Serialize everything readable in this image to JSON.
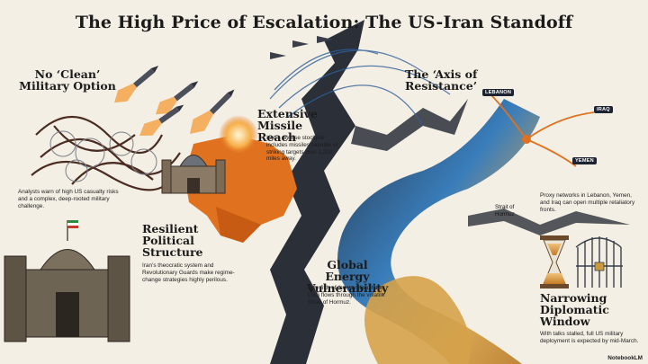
{
  "title": "The High Price of Escalation: The US-Iran Standoff",
  "sections": {
    "military": {
      "heading": "No ‘Clean’ Military Option",
      "body": "Analysts warn of high US casualty risks and a complex, deep-rooted military challenge."
    },
    "missile": {
      "heading": "Extensive Missile Reach",
      "body": "Iran’s diverse stockpile includes missiles capable of striking targets over 1,200 miles away."
    },
    "axis": {
      "heading": "The ‘Axis of Resistance’",
      "body": "Proxy networks in Lebanon, Yemen, and Iraq can open multiple retaliatory fronts.",
      "tags": [
        "LEBANON",
        "IRAQ",
        "YEMEN"
      ]
    },
    "political": {
      "heading": "Resilient Political Structure",
      "body": "Iran’s theocratic system and Revolutionary Guards make regime-change strategies highly perilous."
    },
    "energy": {
      "heading": "Global Energy Vulnerability",
      "body": "One-fifth of the world’s oil and LNG flows through the volatile Strait of Hormuz.",
      "strait_label": "Strait of Hormuz"
    },
    "diplomatic": {
      "heading": "Narrowing Diplomatic Window",
      "body": "With talks stalled, full US military deployment is expected by mid-March."
    }
  },
  "footer": "NotebookLM",
  "colors": {
    "background": "#f4efe4",
    "orange": "#e0711f",
    "navy": "#1e2a3e",
    "blue": "#2f77b8",
    "gold": "#d5a24a",
    "crack": "#2a2f38"
  }
}
